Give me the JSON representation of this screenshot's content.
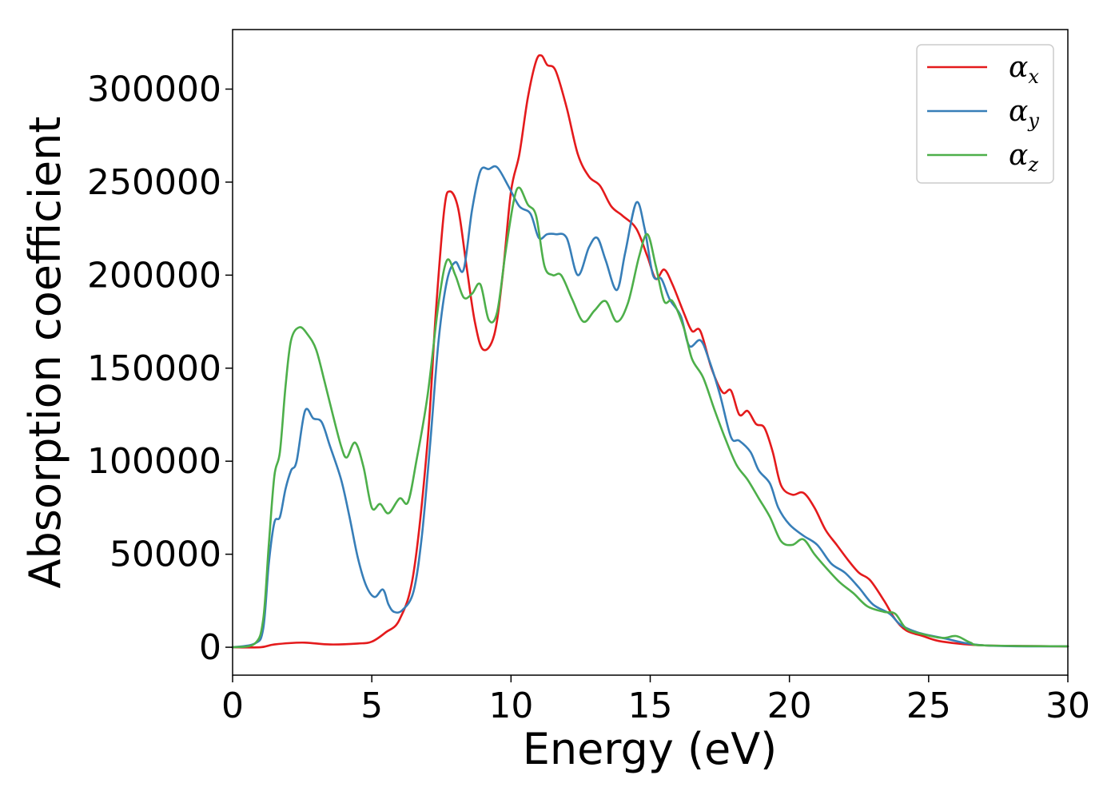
{
  "chart_data": {
    "type": "line",
    "xlabel": "Energy (eV)",
    "ylabel": "Absorption coefficient",
    "xlim": [
      0,
      30
    ],
    "ylim": [
      -15000,
      332000
    ],
    "xticks": [
      0,
      5,
      10,
      15,
      20,
      25,
      30
    ],
    "xtick_labels": [
      "0",
      "5",
      "10",
      "15",
      "20",
      "25",
      "30"
    ],
    "yticks": [
      0,
      50000,
      100000,
      150000,
      200000,
      250000,
      300000
    ],
    "ytick_labels": [
      "0",
      "50000",
      "100000",
      "150000",
      "200000",
      "250000",
      "300000"
    ],
    "grid": false,
    "legend_position": "top-right",
    "series": [
      {
        "name": "α",
        "subscript": "x",
        "color": "#e41a1c",
        "points": [
          [
            0,
            0
          ],
          [
            1,
            0
          ],
          [
            1.5,
            1500
          ],
          [
            2.5,
            2500
          ],
          [
            3.5,
            1500
          ],
          [
            4.5,
            2000
          ],
          [
            5,
            3000
          ],
          [
            5.5,
            8000
          ],
          [
            6,
            15000
          ],
          [
            6.5,
            40000
          ],
          [
            7,
            110000
          ],
          [
            7.3,
            180000
          ],
          [
            7.6,
            235000
          ],
          [
            7.8,
            245000
          ],
          [
            8.1,
            236000
          ],
          [
            8.4,
            205000
          ],
          [
            8.7,
            175000
          ],
          [
            9.0,
            160000
          ],
          [
            9.4,
            168000
          ],
          [
            9.7,
            200000
          ],
          [
            10.0,
            245000
          ],
          [
            10.3,
            265000
          ],
          [
            10.6,
            295000
          ],
          [
            10.9,
            315000
          ],
          [
            11.1,
            318000
          ],
          [
            11.3,
            313000
          ],
          [
            11.6,
            310000
          ],
          [
            12.0,
            290000
          ],
          [
            12.4,
            265000
          ],
          [
            12.8,
            253000
          ],
          [
            13.2,
            248000
          ],
          [
            13.6,
            237000
          ],
          [
            14.0,
            232000
          ],
          [
            14.5,
            225000
          ],
          [
            14.9,
            210000
          ],
          [
            15.2,
            198000
          ],
          [
            15.5,
            203000
          ],
          [
            15.8,
            195000
          ],
          [
            16.2,
            180000
          ],
          [
            16.5,
            170000
          ],
          [
            16.8,
            170000
          ],
          [
            17.2,
            150000
          ],
          [
            17.6,
            137000
          ],
          [
            17.9,
            138000
          ],
          [
            18.2,
            125000
          ],
          [
            18.5,
            127000
          ],
          [
            18.8,
            120000
          ],
          [
            19.1,
            118000
          ],
          [
            19.4,
            105000
          ],
          [
            19.7,
            87000
          ],
          [
            20.1,
            82000
          ],
          [
            20.5,
            83000
          ],
          [
            20.9,
            75000
          ],
          [
            21.3,
            63000
          ],
          [
            21.7,
            55000
          ],
          [
            22.1,
            47000
          ],
          [
            22.5,
            40000
          ],
          [
            22.9,
            36000
          ],
          [
            23.4,
            25000
          ],
          [
            23.8,
            15000
          ],
          [
            24.2,
            9000
          ],
          [
            24.8,
            6000
          ],
          [
            25.5,
            3000
          ],
          [
            27,
            1000
          ],
          [
            30,
            500
          ]
        ]
      },
      {
        "name": "α",
        "subscript": "y",
        "color": "#377eb8",
        "points": [
          [
            0,
            0
          ],
          [
            0.8,
            2000
          ],
          [
            1.1,
            10000
          ],
          [
            1.3,
            45000
          ],
          [
            1.5,
            67000
          ],
          [
            1.7,
            70000
          ],
          [
            1.9,
            85000
          ],
          [
            2.1,
            95000
          ],
          [
            2.3,
            100000
          ],
          [
            2.6,
            127000
          ],
          [
            2.9,
            123000
          ],
          [
            3.2,
            121000
          ],
          [
            3.5,
            108000
          ],
          [
            3.9,
            90000
          ],
          [
            4.2,
            70000
          ],
          [
            4.5,
            48000
          ],
          [
            4.8,
            33000
          ],
          [
            5.1,
            27000
          ],
          [
            5.4,
            31000
          ],
          [
            5.6,
            23000
          ],
          [
            5.8,
            19000
          ],
          [
            6.1,
            20000
          ],
          [
            6.5,
            30000
          ],
          [
            6.8,
            60000
          ],
          [
            7.1,
            110000
          ],
          [
            7.4,
            165000
          ],
          [
            7.7,
            197000
          ],
          [
            8.0,
            207000
          ],
          [
            8.3,
            203000
          ],
          [
            8.6,
            235000
          ],
          [
            8.9,
            256000
          ],
          [
            9.2,
            257000
          ],
          [
            9.5,
            258000
          ],
          [
            9.9,
            248000
          ],
          [
            10.3,
            237000
          ],
          [
            10.7,
            233000
          ],
          [
            11.0,
            220000
          ],
          [
            11.3,
            222000
          ],
          [
            11.6,
            222000
          ],
          [
            12.0,
            220000
          ],
          [
            12.4,
            200000
          ],
          [
            12.8,
            215000
          ],
          [
            13.1,
            220000
          ],
          [
            13.4,
            208000
          ],
          [
            13.8,
            192000
          ],
          [
            14.1,
            212000
          ],
          [
            14.5,
            239000
          ],
          [
            14.8,
            225000
          ],
          [
            15.1,
            200000
          ],
          [
            15.4,
            198000
          ],
          [
            15.7,
            187000
          ],
          [
            16.1,
            178000
          ],
          [
            16.4,
            162000
          ],
          [
            16.8,
            165000
          ],
          [
            17.1,
            155000
          ],
          [
            17.5,
            136000
          ],
          [
            17.9,
            113000
          ],
          [
            18.2,
            111000
          ],
          [
            18.6,
            105000
          ],
          [
            18.9,
            95000
          ],
          [
            19.3,
            88000
          ],
          [
            19.6,
            75000
          ],
          [
            20.0,
            66000
          ],
          [
            20.5,
            60000
          ],
          [
            21.0,
            55000
          ],
          [
            21.5,
            45000
          ],
          [
            22.0,
            40000
          ],
          [
            22.5,
            32000
          ],
          [
            23.0,
            23000
          ],
          [
            23.6,
            18000
          ],
          [
            24.0,
            12000
          ],
          [
            24.6,
            8000
          ],
          [
            25.5,
            5000
          ],
          [
            27,
            1000
          ],
          [
            30,
            500
          ]
        ]
      },
      {
        "name": "α",
        "subscript": "z",
        "color": "#4daf4a",
        "points": [
          [
            0,
            0
          ],
          [
            0.8,
            2000
          ],
          [
            1.1,
            15000
          ],
          [
            1.3,
            55000
          ],
          [
            1.5,
            92000
          ],
          [
            1.7,
            105000
          ],
          [
            1.9,
            140000
          ],
          [
            2.1,
            165000
          ],
          [
            2.4,
            172000
          ],
          [
            2.7,
            168000
          ],
          [
            3.0,
            160000
          ],
          [
            3.3,
            143000
          ],
          [
            3.6,
            125000
          ],
          [
            3.9,
            108000
          ],
          [
            4.1,
            102000
          ],
          [
            4.4,
            110000
          ],
          [
            4.7,
            97000
          ],
          [
            5.0,
            75000
          ],
          [
            5.3,
            77000
          ],
          [
            5.6,
            72000
          ],
          [
            6.0,
            80000
          ],
          [
            6.3,
            78000
          ],
          [
            6.6,
            100000
          ],
          [
            7.0,
            135000
          ],
          [
            7.4,
            185000
          ],
          [
            7.7,
            208000
          ],
          [
            8.0,
            200000
          ],
          [
            8.3,
            188000
          ],
          [
            8.6,
            190000
          ],
          [
            8.9,
            195000
          ],
          [
            9.2,
            176000
          ],
          [
            9.5,
            180000
          ],
          [
            9.8,
            212000
          ],
          [
            10.1,
            240000
          ],
          [
            10.3,
            247000
          ],
          [
            10.6,
            238000
          ],
          [
            10.9,
            232000
          ],
          [
            11.2,
            205000
          ],
          [
            11.5,
            200000
          ],
          [
            11.8,
            200000
          ],
          [
            12.2,
            187000
          ],
          [
            12.6,
            175000
          ],
          [
            13.0,
            181000
          ],
          [
            13.4,
            186000
          ],
          [
            13.8,
            175000
          ],
          [
            14.2,
            185000
          ],
          [
            14.6,
            210000
          ],
          [
            14.9,
            222000
          ],
          [
            15.2,
            205000
          ],
          [
            15.5,
            186000
          ],
          [
            15.8,
            186000
          ],
          [
            16.2,
            172000
          ],
          [
            16.5,
            155000
          ],
          [
            16.9,
            145000
          ],
          [
            17.3,
            128000
          ],
          [
            17.7,
            112000
          ],
          [
            18.1,
            98000
          ],
          [
            18.5,
            90000
          ],
          [
            18.9,
            80000
          ],
          [
            19.3,
            70000
          ],
          [
            19.7,
            57000
          ],
          [
            20.1,
            55000
          ],
          [
            20.5,
            58000
          ],
          [
            20.9,
            50000
          ],
          [
            21.3,
            43000
          ],
          [
            21.8,
            35000
          ],
          [
            22.3,
            29000
          ],
          [
            22.8,
            22000
          ],
          [
            23.4,
            19000
          ],
          [
            23.8,
            18000
          ],
          [
            24.2,
            10000
          ],
          [
            24.8,
            7000
          ],
          [
            25.5,
            5000
          ],
          [
            26.0,
            6000
          ],
          [
            26.5,
            2500
          ],
          [
            27,
            1000
          ],
          [
            30,
            500
          ]
        ]
      }
    ]
  }
}
